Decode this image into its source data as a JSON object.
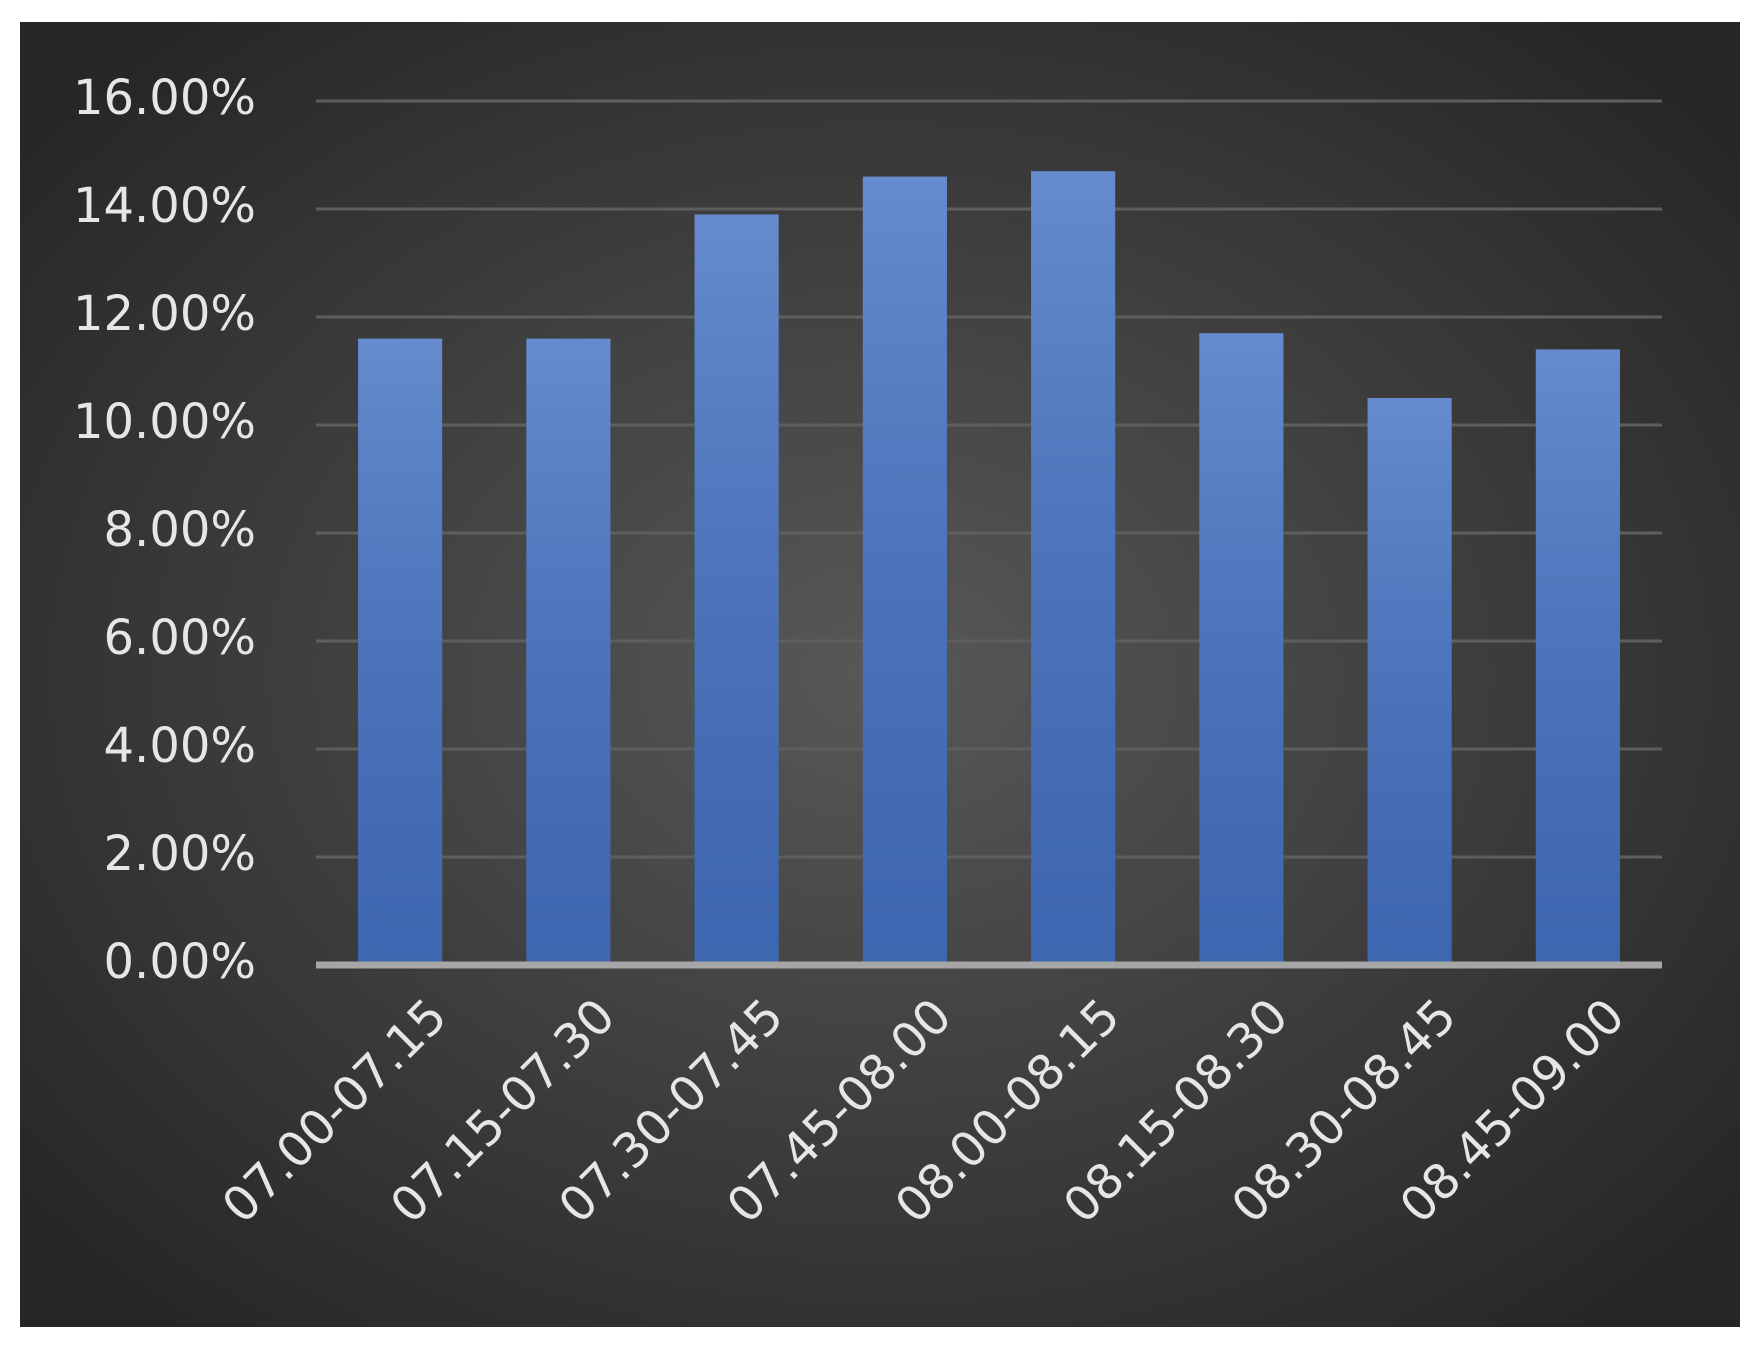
{
  "chart_data": {
    "type": "bar",
    "categories": [
      "07.00-07.15",
      "07.15-07.30",
      "07.30-07.45",
      "07.45-08.00",
      "08.00-08.15",
      "08.15-08.30",
      "08.30-08.45",
      "08.45-09.00"
    ],
    "values": [
      11.6,
      11.6,
      13.9,
      14.6,
      14.7,
      11.7,
      10.5,
      11.4
    ],
    "color": "#4472c4",
    "ylim": [
      0,
      16
    ],
    "yticks": [
      {
        "value": 0,
        "label": "0.00%"
      },
      {
        "value": 2,
        "label": "2.00%"
      },
      {
        "value": 4,
        "label": "4.00%"
      },
      {
        "value": 6,
        "label": "6.00%"
      },
      {
        "value": 8,
        "label": "8.00%"
      },
      {
        "value": 10,
        "label": "10.00%"
      },
      {
        "value": 12,
        "label": "12.00%"
      },
      {
        "value": 14,
        "label": "14.00%"
      },
      {
        "value": 16,
        "label": "16.00%"
      }
    ],
    "grid": true
  }
}
